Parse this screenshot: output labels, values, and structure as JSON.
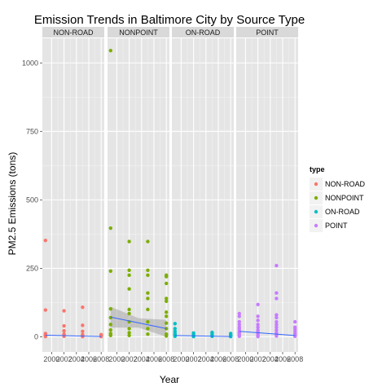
{
  "chart_data": {
    "type": "scatter",
    "title": "Emission Trends in Baltimore City by Source Type",
    "xlabel": "Year",
    "ylabel": "PM2.5 Emissions (tons)",
    "x_ticks": [
      2000,
      2002,
      2004,
      2006,
      2008
    ],
    "x_tick_labels": [
      "2000",
      "2002",
      "2004",
      "2006",
      "2008"
    ],
    "xlim": [
      1998.5,
      2008.5
    ],
    "y_ticks": [
      0,
      250,
      500,
      750,
      1000
    ],
    "y_tick_labels": [
      "0",
      "250",
      "500",
      "750",
      "1000"
    ],
    "ylim": [
      -55,
      1090
    ],
    "grid": true,
    "legend": {
      "title": "type",
      "position": "right"
    },
    "facets": [
      {
        "name": "NON-ROAD",
        "color": "#F8766D",
        "points": [
          [
            1999,
            352
          ],
          [
            1999,
            98
          ],
          [
            1999,
            12
          ],
          [
            1999,
            6
          ],
          [
            1999,
            3
          ],
          [
            1999,
            1
          ],
          [
            2002,
            95
          ],
          [
            2002,
            40
          ],
          [
            2002,
            22
          ],
          [
            2002,
            10
          ],
          [
            2002,
            5
          ],
          [
            2002,
            2
          ],
          [
            2005,
            108
          ],
          [
            2005,
            42
          ],
          [
            2005,
            20
          ],
          [
            2005,
            8
          ],
          [
            2005,
            4
          ],
          [
            2005,
            1
          ],
          [
            2008,
            8
          ],
          [
            2008,
            5
          ],
          [
            2008,
            3
          ],
          [
            2008,
            1
          ]
        ],
        "trend": [
          [
            1999,
            6
          ],
          [
            2008,
            1
          ]
        ]
      },
      {
        "name": "NONPOINT",
        "color": "#7CAE00",
        "points": [
          [
            1999,
            1045
          ],
          [
            1999,
            397
          ],
          [
            1999,
            240
          ],
          [
            1999,
            102
          ],
          [
            1999,
            70
          ],
          [
            1999,
            45
          ],
          [
            1999,
            25
          ],
          [
            1999,
            12
          ],
          [
            1999,
            5
          ],
          [
            2002,
            348
          ],
          [
            2002,
            243
          ],
          [
            2002,
            225
          ],
          [
            2002,
            175
          ],
          [
            2002,
            100
          ],
          [
            2002,
            85
          ],
          [
            2002,
            55
          ],
          [
            2002,
            30
          ],
          [
            2002,
            15
          ],
          [
            2002,
            5
          ],
          [
            2005,
            348
          ],
          [
            2005,
            243
          ],
          [
            2005,
            225
          ],
          [
            2005,
            160
          ],
          [
            2005,
            140
          ],
          [
            2005,
            100
          ],
          [
            2005,
            55
          ],
          [
            2005,
            30
          ],
          [
            2005,
            10
          ],
          [
            2008,
            225
          ],
          [
            2008,
            220
          ],
          [
            2008,
            195
          ],
          [
            2008,
            140
          ],
          [
            2008,
            130
          ],
          [
            2008,
            90
          ],
          [
            2008,
            75
          ],
          [
            2008,
            50
          ],
          [
            2008,
            30
          ],
          [
            2008,
            10
          ],
          [
            2008,
            3
          ]
        ],
        "trend": [
          [
            1999,
            72
          ],
          [
            2008,
            30
          ]
        ],
        "band": {
          "upper": [
            [
              1999,
              110
            ],
            [
              2003.5,
              68
            ],
            [
              2008,
              62
            ]
          ],
          "lower": [
            [
              1999,
              34
            ],
            [
              2003.5,
              34
            ],
            [
              2008,
              0
            ]
          ]
        }
      },
      {
        "name": "ON-ROAD",
        "color": "#00BFC4",
        "points": [
          [
            1999,
            48
          ],
          [
            1999,
            30
          ],
          [
            1999,
            20
          ],
          [
            1999,
            12
          ],
          [
            1999,
            6
          ],
          [
            1999,
            2
          ],
          [
            2002,
            14
          ],
          [
            2002,
            8
          ],
          [
            2002,
            4
          ],
          [
            2002,
            1
          ],
          [
            2005,
            16
          ],
          [
            2005,
            10
          ],
          [
            2005,
            5
          ],
          [
            2005,
            2
          ],
          [
            2008,
            12
          ],
          [
            2008,
            7
          ],
          [
            2008,
            3
          ],
          [
            2008,
            1
          ]
        ],
        "trend": [
          [
            1999,
            5
          ],
          [
            2008,
            1
          ]
        ]
      },
      {
        "name": "POINT",
        "color": "#C77CFF",
        "points": [
          [
            1999,
            85
          ],
          [
            1999,
            75
          ],
          [
            1999,
            55
          ],
          [
            1999,
            45
          ],
          [
            1999,
            35
          ],
          [
            1999,
            28
          ],
          [
            1999,
            20
          ],
          [
            1999,
            15
          ],
          [
            1999,
            10
          ],
          [
            1999,
            5
          ],
          [
            1999,
            2
          ],
          [
            2002,
            118
          ],
          [
            2002,
            75
          ],
          [
            2002,
            60
          ],
          [
            2002,
            45
          ],
          [
            2002,
            35
          ],
          [
            2002,
            25
          ],
          [
            2002,
            18
          ],
          [
            2002,
            12
          ],
          [
            2002,
            8
          ],
          [
            2002,
            4
          ],
          [
            2002,
            1
          ],
          [
            2005,
            260
          ],
          [
            2005,
            160
          ],
          [
            2005,
            140
          ],
          [
            2005,
            80
          ],
          [
            2005,
            70
          ],
          [
            2005,
            55
          ],
          [
            2005,
            45
          ],
          [
            2005,
            35
          ],
          [
            2005,
            25
          ],
          [
            2005,
            15
          ],
          [
            2005,
            8
          ],
          [
            2005,
            3
          ],
          [
            2008,
            55
          ],
          [
            2008,
            35
          ],
          [
            2008,
            28
          ],
          [
            2008,
            20
          ],
          [
            2008,
            12
          ],
          [
            2008,
            6
          ],
          [
            2008,
            2
          ]
        ],
        "trend": [
          [
            1999,
            20
          ],
          [
            2008,
            5
          ]
        ]
      }
    ]
  }
}
